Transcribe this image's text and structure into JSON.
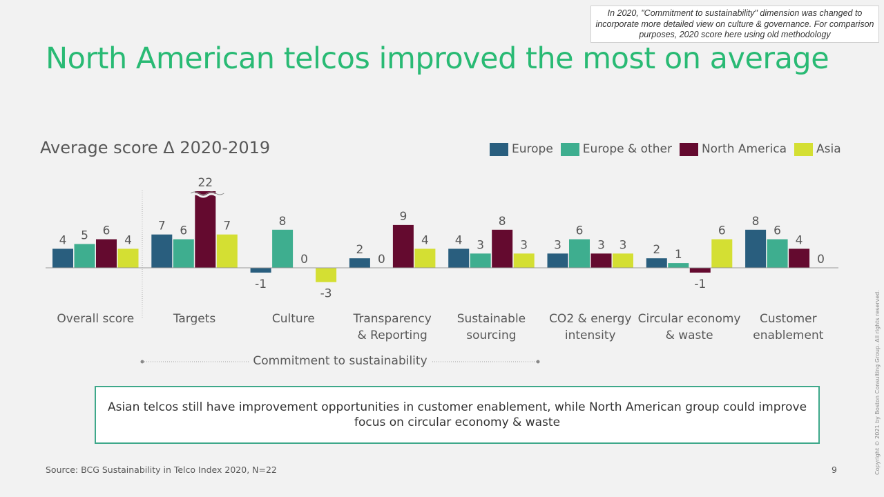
{
  "note": "In 2020, \"Commitment to sustainability\" dimension was changed to incorporate more detailed view on culture & governance. For comparison purposes, 2020 score here using old methodology",
  "title": "North American telcos improved the most on average",
  "bracket_label": "Commitment to sustainability",
  "callout": "Asian telcos still have improvement opportunities in customer enablement, while North American group could improve focus on circular economy & waste",
  "source": "Source: BCG Sustainability in Telco Index 2020, N=22",
  "page_number": "9",
  "copyright": "Copyright © 2021 by Boston Consulting Group. All rights reserved.",
  "chart_data": {
    "type": "bar",
    "title": "Average score Δ 2020-2019",
    "categories": [
      "Overall score",
      "Targets",
      "Culture",
      "Transparency & Reporting",
      "Sustainable sourcing",
      "CO2 & energy intensity",
      "Circular economy & waste",
      "Customer enablement"
    ],
    "category_lines": [
      [
        "Overall score"
      ],
      [
        "Targets"
      ],
      [
        "Culture"
      ],
      [
        "Transparency",
        "& Reporting"
      ],
      [
        "Sustainable",
        "sourcing"
      ],
      [
        "CO2 & energy",
        "intensity"
      ],
      [
        "Circular economy",
        "& waste"
      ],
      [
        "Customer",
        "enablement"
      ]
    ],
    "series": [
      {
        "name": "Europe",
        "color": "#295e7e",
        "values": [
          4,
          7,
          -1,
          2,
          4,
          3,
          2,
          8
        ]
      },
      {
        "name": "Europe & other",
        "color": "#3eae8f",
        "values": [
          5,
          6,
          8,
          0,
          3,
          6,
          1,
          6
        ]
      },
      {
        "name": "North America",
        "color": "#640a2f",
        "values": [
          6,
          22,
          0,
          9,
          8,
          3,
          -1,
          4
        ]
      },
      {
        "name": "Asia",
        "color": "#d4df33",
        "values": [
          4,
          7,
          -3,
          4,
          3,
          3,
          6,
          0
        ]
      }
    ],
    "axis_break": {
      "category": "Targets",
      "series": "North America"
    },
    "grid": false,
    "legend_position": "top-right"
  }
}
